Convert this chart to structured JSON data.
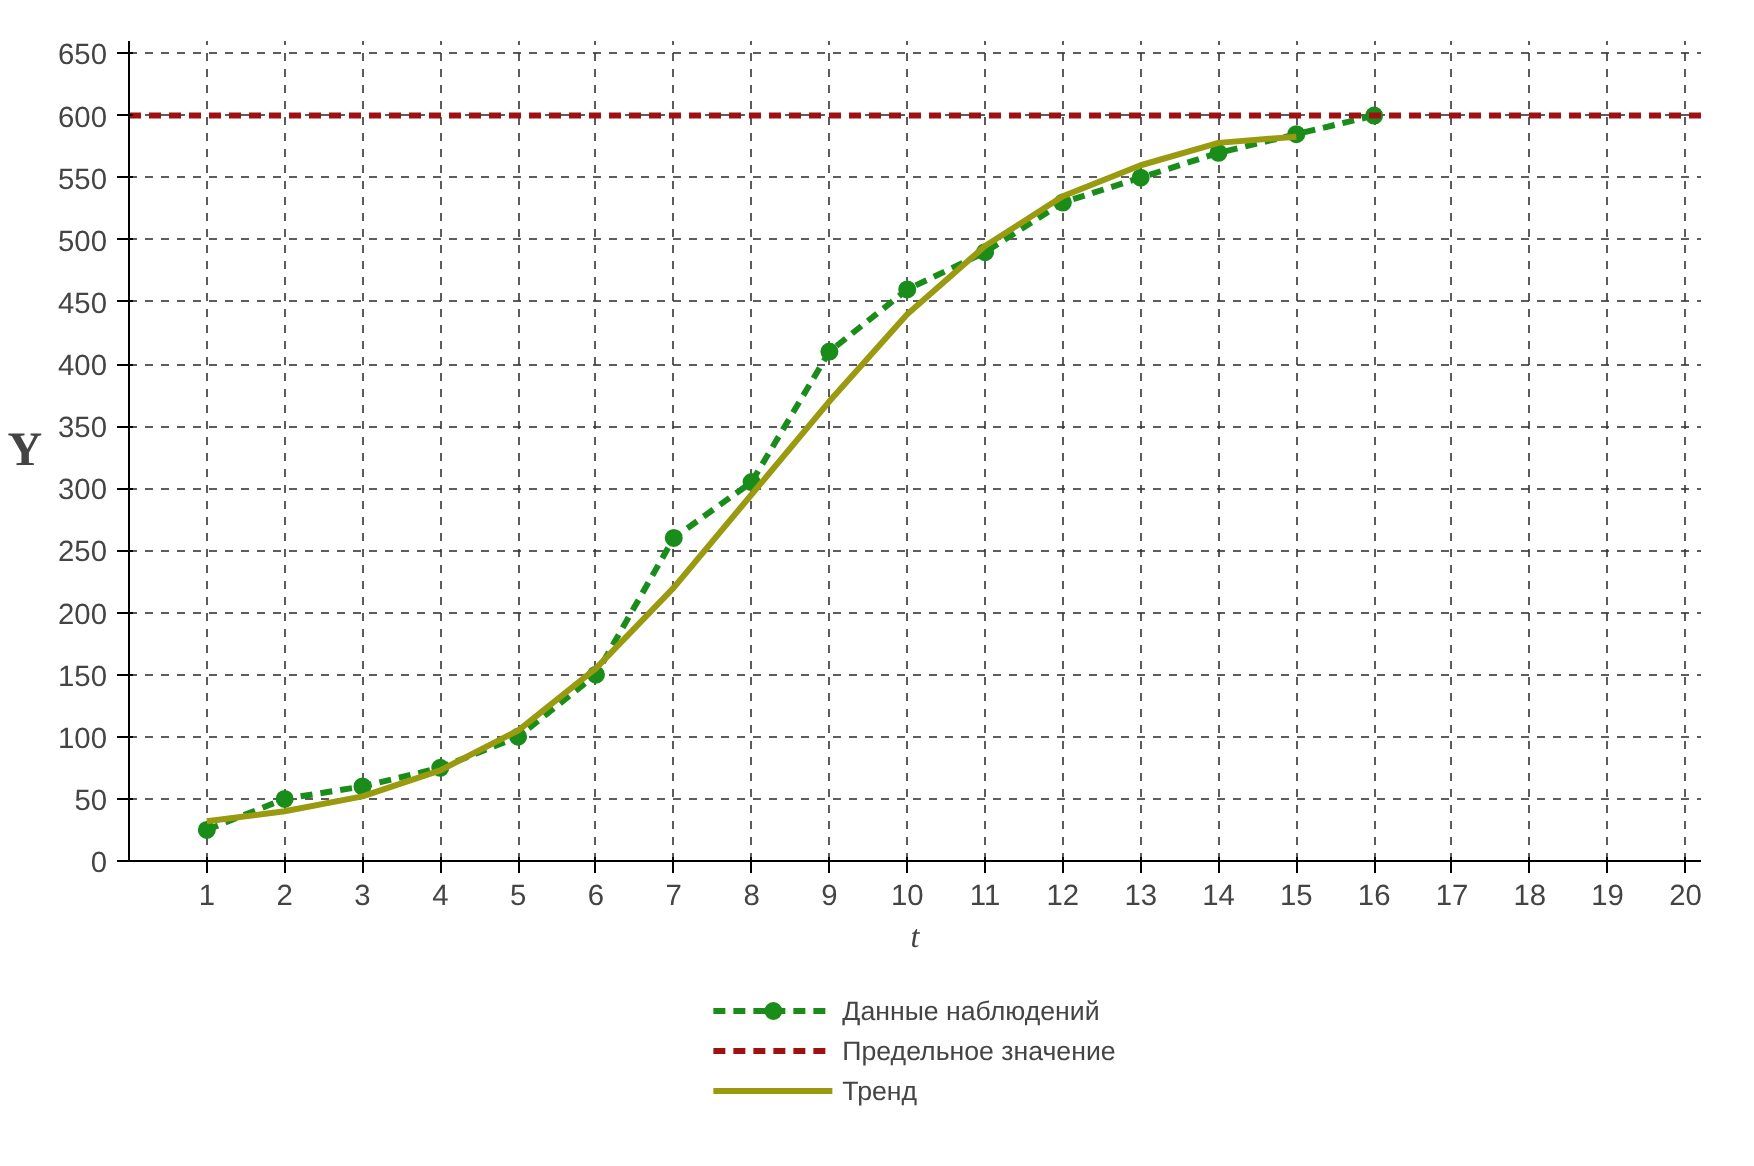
{
  "chart_data": {
    "type": "line",
    "xlabel": "t",
    "ylabel": "Y",
    "xlim": [
      0,
      20.2
    ],
    "ylim": [
      0,
      660
    ],
    "xticks": [
      1,
      2,
      3,
      4,
      5,
      6,
      7,
      8,
      9,
      10,
      11,
      12,
      13,
      14,
      15,
      16,
      17,
      18,
      19,
      20
    ],
    "yticks": [
      0,
      50,
      100,
      150,
      200,
      250,
      300,
      350,
      400,
      450,
      500,
      550,
      600,
      650
    ],
    "series": [
      {
        "name": "Данные наблюдений",
        "color": "#1a8c1a",
        "marker": "circle",
        "line_style": "dashed",
        "x": [
          1,
          2,
          3,
          4,
          5,
          6,
          7,
          8,
          9,
          10,
          11,
          12,
          13,
          14,
          15,
          16
        ],
        "values": [
          25,
          50,
          60,
          75,
          100,
          150,
          260,
          305,
          410,
          460,
          490,
          530,
          550,
          570,
          585,
          600
        ]
      },
      {
        "name": "Тренд",
        "color": "#9a9a10",
        "marker": "none",
        "line_style": "solid",
        "x": [
          1,
          2,
          3,
          4,
          5,
          6,
          7,
          8,
          9,
          10,
          11,
          12,
          13,
          14,
          15
        ],
        "values": [
          32,
          40,
          52,
          73,
          105,
          155,
          220,
          295,
          370,
          440,
          495,
          535,
          560,
          578,
          583
        ]
      }
    ],
    "ref_lines": [
      {
        "axis": "y",
        "value": 600,
        "label": "Предельное значение",
        "color": "#a01010",
        "line_style": "dashed"
      }
    ],
    "grid": true,
    "legend": "bottom"
  }
}
